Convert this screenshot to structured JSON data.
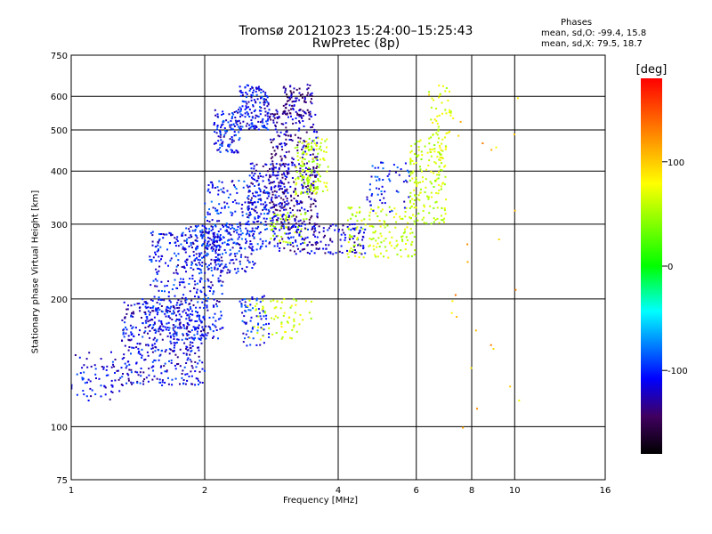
{
  "chart_data": {
    "type": "scatter",
    "title": "Tromsø 20121023 15:24:00–15:25:43",
    "subtitle": "RwPretec (8p)",
    "xlabel": "Frequency [MHz]",
    "ylabel": "Stationary phase Virtual Height [km]",
    "x_scale": "log",
    "y_scale": "log",
    "xlim": [
      1,
      16
    ],
    "ylim": [
      75,
      750
    ],
    "x_ticks": [
      "1",
      "2",
      "4",
      "6",
      "8",
      "10",
      "16"
    ],
    "x_tick_values": [
      1,
      2,
      4,
      6,
      8,
      10,
      16
    ],
    "y_ticks": [
      "750",
      "600",
      "500",
      "400",
      "300",
      "200",
      "100",
      "75"
    ],
    "y_tick_values": [
      750,
      600,
      500,
      400,
      300,
      200,
      100,
      75
    ],
    "grid": true,
    "colorbar": {
      "label": "[deg]",
      "ticks": [
        "100",
        "0",
        "-100"
      ],
      "tick_values": [
        100,
        0,
        -100
      ],
      "range": [
        -180,
        180
      ],
      "colors": [
        "#ff0000",
        "#ffff00",
        "#00ff00",
        "#00ffff",
        "#0000ff",
        "#400060",
        "#000000"
      ]
    },
    "phases": {
      "heading": "Phases",
      "line1": "mean, sd,O: -99.4, 15.8",
      "line2": "mean, sd,X:  79.5, 18.7"
    },
    "clusters": [
      {
        "f": [
          1.0,
          1.3
        ],
        "h": [
          115,
          150
        ],
        "n": 70,
        "phase": -105
      },
      {
        "f": [
          1.3,
          2.0
        ],
        "h": [
          125,
          200
        ],
        "n": 420,
        "phase": -105
      },
      {
        "f": [
          1.5,
          2.2
        ],
        "h": [
          160,
          290
        ],
        "n": 420,
        "phase": -100
      },
      {
        "f": [
          1.8,
          2.6
        ],
        "h": [
          230,
          300
        ],
        "n": 180,
        "phase": -100
      },
      {
        "f": [
          2.0,
          2.8
        ],
        "h": [
          260,
          380
        ],
        "n": 220,
        "phase": -95
      },
      {
        "f": [
          2.1,
          2.4
        ],
        "h": [
          440,
          560
        ],
        "n": 110,
        "phase": -100
      },
      {
        "f": [
          2.4,
          2.8
        ],
        "h": [
          500,
          640
        ],
        "n": 150,
        "phase": -100
      },
      {
        "f": [
          2.5,
          3.1
        ],
        "h": [
          300,
          420
        ],
        "n": 160,
        "phase": -110
      },
      {
        "f": [
          2.8,
          3.6
        ],
        "h": [
          290,
          560
        ],
        "n": 380,
        "phase": -120
      },
      {
        "f": [
          3.0,
          3.5
        ],
        "h": [
          540,
          640
        ],
        "n": 80,
        "phase": -125
      },
      {
        "f": [
          3.2,
          3.8
        ],
        "h": [
          350,
          480
        ],
        "n": 140,
        "phase": 75
      },
      {
        "f": [
          2.8,
          3.4
        ],
        "h": [
          270,
          320
        ],
        "n": 50,
        "phase": 70
      },
      {
        "f": [
          2.4,
          2.8
        ],
        "h": [
          155,
          205
        ],
        "n": 70,
        "phase": -95
      },
      {
        "f": [
          2.5,
          3.5
        ],
        "h": [
          160,
          200
        ],
        "n": 70,
        "phase": 80
      },
      {
        "f": [
          2.8,
          4.6
        ],
        "h": [
          255,
          300
        ],
        "n": 170,
        "phase": -110
      },
      {
        "f": [
          4.2,
          6.0
        ],
        "h": [
          250,
          330
        ],
        "n": 150,
        "phase": 80
      },
      {
        "f": [
          4.6,
          5.8
        ],
        "h": [
          320,
          420
        ],
        "n": 60,
        "phase": -95
      },
      {
        "f": [
          5.8,
          7.0
        ],
        "h": [
          300,
          480
        ],
        "n": 160,
        "phase": 75
      },
      {
        "f": [
          6.4,
          7.2
        ],
        "h": [
          420,
          640
        ],
        "n": 60,
        "phase": 85
      },
      {
        "f": [
          7.2,
          10.5
        ],
        "h": [
          95,
          620
        ],
        "n": 25,
        "phase": 120
      }
    ]
  }
}
